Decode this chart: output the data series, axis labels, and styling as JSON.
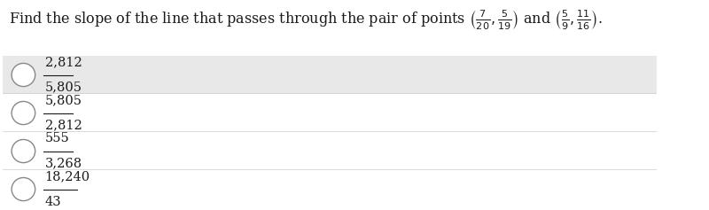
{
  "options": [
    {
      "num": "2,812",
      "den": "5,805",
      "highlighted": true
    },
    {
      "num": "5,805",
      "den": "2,812",
      "highlighted": false
    },
    {
      "num": "555",
      "den": "3,268",
      "highlighted": false
    },
    {
      "num": "18,240",
      "den": "43",
      "highlighted": false
    }
  ],
  "bg_color_option1": "#e8e8e8",
  "bg_color_white": "#ffffff",
  "text_color": "#1a1a1a",
  "font_size_title": 11.5,
  "font_size_options": 10.5
}
